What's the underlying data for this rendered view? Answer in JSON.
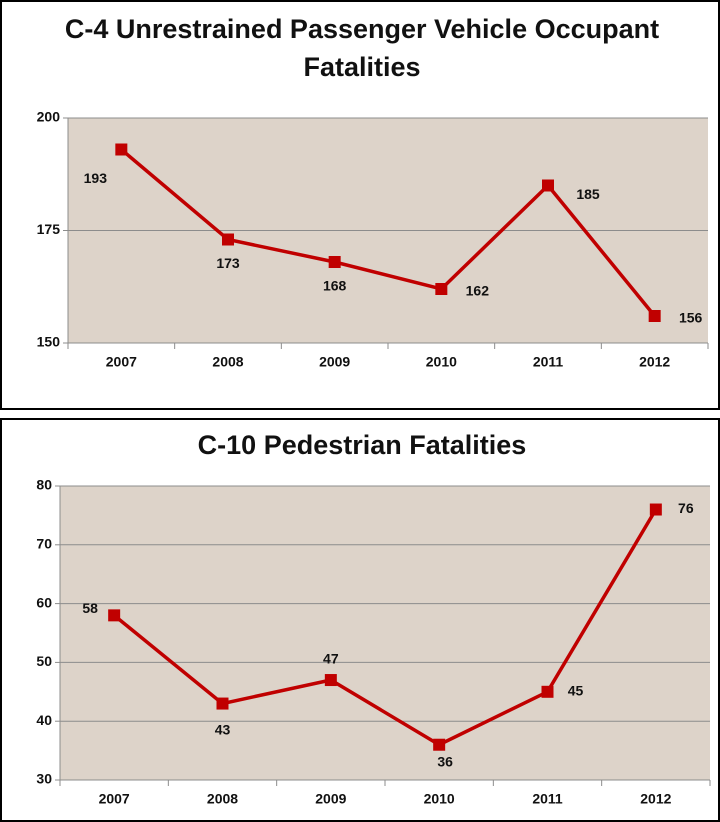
{
  "chart_data": [
    {
      "type": "line",
      "title": "C-4 Unrestrained Passenger Vehicle Occupant Fatalities",
      "categories": [
        "2007",
        "2008",
        "2009",
        "2010",
        "2011",
        "2012"
      ],
      "values": [
        193,
        173,
        168,
        162,
        185,
        156
      ],
      "color": "#c00000",
      "ylim": [
        150,
        200
      ],
      "yticks": [
        150,
        175,
        200
      ],
      "grid": true
    },
    {
      "type": "line",
      "title": "C-10 Pedestrian Fatalities",
      "categories": [
        "2007",
        "2008",
        "2009",
        "2010",
        "2011",
        "2012"
      ],
      "values": [
        58,
        43,
        47,
        36,
        45,
        76
      ],
      "color": "#c00000",
      "ylim": [
        30,
        80
      ],
      "yticks": [
        30,
        40,
        50,
        60,
        70,
        80
      ],
      "grid": true
    }
  ]
}
